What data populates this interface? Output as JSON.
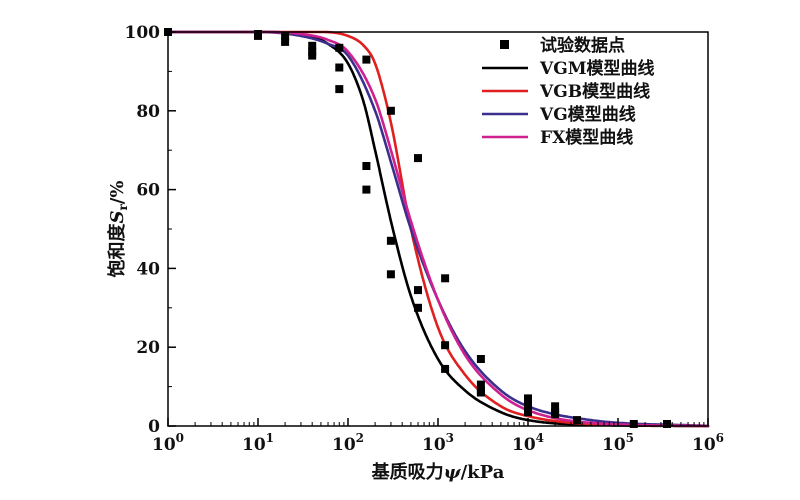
{
  "chart_data": {
    "type": "scatter",
    "x_scale": "log",
    "xlim": [
      1,
      1000000
    ],
    "ylim": [
      0,
      100
    ],
    "xlabel": "基质吸力ψ/kPa",
    "ylabel": "饱和度S_r/%",
    "ylabel_parts": {
      "prefix": "饱和度",
      "var": "S",
      "sub": "r",
      "suffix": "/%"
    },
    "xlabel_parts": {
      "prefix": "基质吸力",
      "var": "ψ",
      "suffix": "/kPa"
    },
    "x_ticks": [
      {
        "base": "10",
        "exp": "0"
      },
      {
        "base": "10",
        "exp": "1"
      },
      {
        "base": "10",
        "exp": "2"
      },
      {
        "base": "10",
        "exp": "3"
      },
      {
        "base": "10",
        "exp": "4"
      },
      {
        "base": "10",
        "exp": "5"
      },
      {
        "base": "10",
        "exp": "6"
      }
    ],
    "y_ticks": [
      "0",
      "20",
      "40",
      "60",
      "80",
      "100"
    ],
    "legend_position": "top-right",
    "scatter": {
      "name": "试验数据点",
      "color": "#000000",
      "points": [
        [
          1,
          100
        ],
        [
          10,
          99.5
        ],
        [
          10,
          99
        ],
        [
          20,
          99
        ],
        [
          20,
          97.5
        ],
        [
          40,
          96.5
        ],
        [
          40,
          95
        ],
        [
          40,
          94
        ],
        [
          80,
          96
        ],
        [
          80,
          91
        ],
        [
          80,
          85.5
        ],
        [
          160,
          93
        ],
        [
          160,
          66
        ],
        [
          160,
          60
        ],
        [
          300,
          80
        ],
        [
          300,
          47
        ],
        [
          300,
          38.5
        ],
        [
          600,
          68
        ],
        [
          600,
          34.5
        ],
        [
          600,
          30
        ],
        [
          1200,
          37.5
        ],
        [
          1200,
          20.5
        ],
        [
          1200,
          14.5
        ],
        [
          3000,
          17
        ],
        [
          3000,
          10.5
        ],
        [
          3000,
          9
        ],
        [
          3000,
          8.5
        ],
        [
          10000,
          7
        ],
        [
          10000,
          5.5
        ],
        [
          10000,
          4
        ],
        [
          10000,
          3.5
        ],
        [
          20000,
          5
        ],
        [
          20000,
          3.5
        ],
        [
          20000,
          3
        ],
        [
          35000,
          1.5
        ],
        [
          150000,
          0.5
        ],
        [
          350000,
          0.5
        ]
      ]
    },
    "series": [
      {
        "name": "VGM模型曲线",
        "color": "#000000",
        "x": [
          1,
          10,
          30,
          60,
          100,
          150,
          200,
          300,
          500,
          1000,
          2000,
          5000,
          10000,
          50000,
          1000000
        ],
        "y": [
          100,
          100,
          99.5,
          97,
          92,
          82,
          70,
          52,
          33,
          17,
          9,
          3.5,
          1.5,
          0.3,
          0
        ]
      },
      {
        "name": "VGB模型曲线",
        "color": "#e02020",
        "x": [
          1,
          10,
          50,
          100,
          150,
          200,
          300,
          500,
          1000,
          2000,
          5000,
          10000,
          50000,
          1000000
        ],
        "y": [
          100,
          100,
          100,
          99,
          96.5,
          92,
          77,
          50,
          25,
          13,
          5,
          2.5,
          0.5,
          0
        ]
      },
      {
        "name": "VG模型曲线",
        "color": "#3a2f8c",
        "x": [
          1,
          10,
          30,
          60,
          100,
          200,
          300,
          500,
          1000,
          2000,
          5000,
          10000,
          50000,
          1000000
        ],
        "y": [
          100,
          100,
          99,
          97,
          94,
          80,
          67,
          50,
          32,
          19,
          9,
          5,
          1.5,
          0
        ]
      },
      {
        "name": "FX模型曲线",
        "color": "#d02090",
        "x": [
          1,
          10,
          30,
          60,
          100,
          200,
          300,
          500,
          1000,
          2000,
          5000,
          10000,
          50000,
          1000000
        ],
        "y": [
          100,
          100,
          99.5,
          98,
          95,
          83,
          70,
          52,
          32,
          18,
          8,
          4,
          0.8,
          0
        ]
      }
    ]
  }
}
